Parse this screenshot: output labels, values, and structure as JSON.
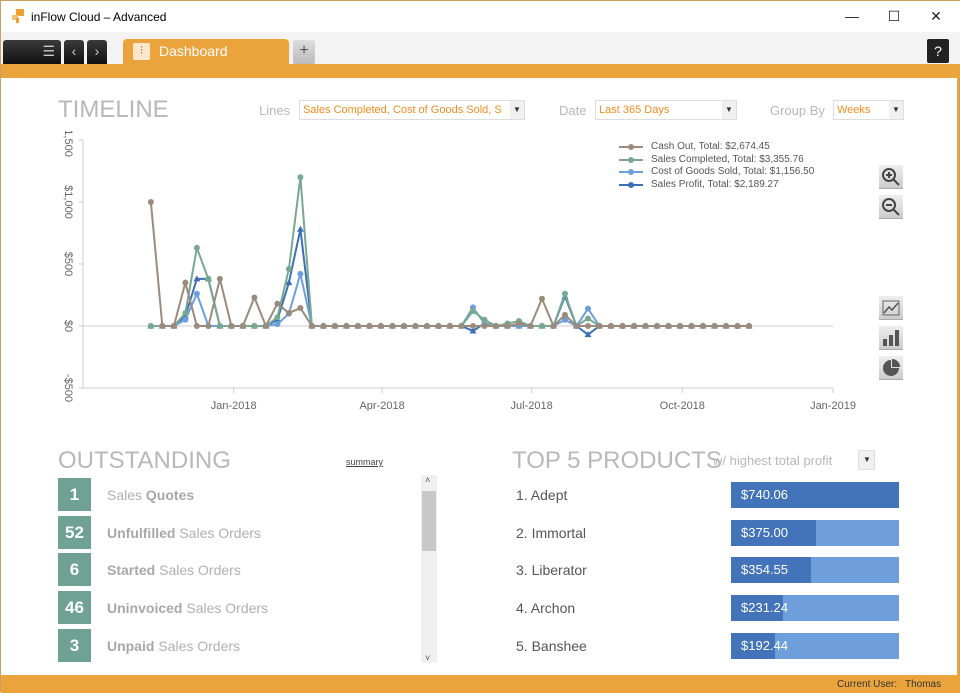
{
  "window": {
    "title": "inFlow Cloud – Advanced",
    "minimize": "—",
    "maximize": "☐",
    "close": "✕"
  },
  "tabbar": {
    "menu": "☰",
    "back": "‹",
    "forward": "›",
    "tab": "Dashboard",
    "add": "+",
    "help": "?"
  },
  "timeline": {
    "title": "TIMELINE",
    "lines_label": "Lines",
    "lines_value": "Sales Completed, Cost of Goods Sold, S",
    "date_label": "Date",
    "date_value": "Last 365 Days",
    "group_label": "Group By",
    "group_value": "Weeks"
  },
  "chart_data": {
    "type": "line",
    "title": "TIMELINE",
    "xlabel": "",
    "ylabel": "",
    "ylim": [
      -500,
      1500
    ],
    "yticks": [
      {
        "v": -500,
        "label": "-$500"
      },
      {
        "v": 0,
        "label": "$0"
      },
      {
        "v": 500,
        "label": "$500"
      },
      {
        "v": 1000,
        "label": "$1,000"
      },
      {
        "v": 1500,
        "label": "$1,500"
      }
    ],
    "x_unit": "week index",
    "xlim": [
      -5.9,
      59.3
    ],
    "xticks": [
      {
        "v": 7.2,
        "label": "Jan-2018"
      },
      {
        "v": 20.1,
        "label": "Apr-2018"
      },
      {
        "v": 33.1,
        "label": "Jul-2018"
      },
      {
        "v": 46.2,
        "label": "Oct-2018"
      },
      {
        "v": 59.3,
        "label": "Jan-2019"
      }
    ],
    "series": [
      {
        "name": "Cash Out, Total: $2,674.45",
        "color": "#9b8b7c",
        "marker": "circle",
        "values": [
          1000,
          0,
          0,
          350,
          0,
          0,
          380,
          0,
          0,
          230,
          0,
          180,
          105,
          145,
          0,
          0,
          0,
          0,
          0,
          0,
          0,
          0,
          0,
          0,
          0,
          0,
          0,
          0,
          0,
          0,
          0,
          0,
          20,
          0,
          220,
          0,
          90,
          0,
          0,
          0,
          0,
          0,
          0,
          0,
          0,
          0,
          0,
          0,
          0,
          0,
          0,
          0,
          0
        ]
      },
      {
        "name": "Sales Completed, Total: $3,355.76",
        "color": "#78a890",
        "marker": "circle",
        "values": [
          0,
          0,
          0,
          105,
          630,
          380,
          0,
          0,
          0,
          0,
          0,
          70,
          460,
          1200,
          0,
          0,
          0,
          0,
          0,
          0,
          0,
          0,
          0,
          0,
          0,
          0,
          0,
          0,
          120,
          50,
          0,
          20,
          40,
          0,
          0,
          0,
          260,
          0,
          60,
          0,
          0,
          0,
          0,
          0,
          0,
          0,
          0,
          0,
          0,
          0,
          0,
          0,
          0
        ]
      },
      {
        "name": "Cost of Goods Sold, Total: $1,156.50",
        "color": "#6f9fda",
        "marker": "circle",
        "values": [
          0,
          0,
          0,
          50,
          260,
          0,
          0,
          0,
          0,
          0,
          0,
          15,
          100,
          420,
          0,
          0,
          0,
          0,
          0,
          0,
          0,
          0,
          0,
          0,
          0,
          0,
          0,
          0,
          150,
          20,
          0,
          0,
          0,
          0,
          0,
          0,
          50,
          0,
          140,
          0,
          0,
          0,
          0,
          0,
          0,
          0,
          0,
          0,
          0,
          0,
          0,
          0,
          0
        ]
      },
      {
        "name": "Sales Profit, Total: $2,189.27",
        "color": "#3c6fb8",
        "marker": "triangle",
        "values": [
          0,
          0,
          0,
          80,
          380,
          380,
          0,
          0,
          0,
          0,
          0,
          50,
          350,
          780,
          0,
          0,
          0,
          0,
          0,
          0,
          0,
          0,
          0,
          0,
          0,
          0,
          0,
          0,
          -40,
          20,
          0,
          0,
          0,
          0,
          0,
          0,
          240,
          0,
          -70,
          0,
          0,
          0,
          0,
          0,
          0,
          0,
          0,
          0,
          0,
          0,
          0,
          0,
          0
        ]
      }
    ],
    "legend": "top-right",
    "grid": false
  },
  "outstanding": {
    "title": "OUTSTANDING",
    "summary": "summary",
    "items": [
      {
        "count": "1",
        "a": "Sales",
        "b": "Quotes",
        "bold": "b"
      },
      {
        "count": "52",
        "a": "Unfulfilled",
        "b": "Sales Orders",
        "bold": "a"
      },
      {
        "count": "6",
        "a": "Started",
        "b": "Sales Orders",
        "bold": "a"
      },
      {
        "count": "46",
        "a": "Uninvoiced",
        "b": "Sales Orders",
        "bold": "a"
      },
      {
        "count": "3",
        "a": "Unpaid",
        "b": "Sales Orders",
        "bold": "a"
      }
    ]
  },
  "top5": {
    "title": "TOP 5 PRODUCTS",
    "subtitle": "w/ highest total profit",
    "items": [
      {
        "name": "1. Adept",
        "value": "$740.06",
        "fraction": 1.0
      },
      {
        "name": "2. Immortal",
        "value": "$375.00",
        "fraction": 0.507
      },
      {
        "name": "3. Liberator",
        "value": "$354.55",
        "fraction": 0.479
      },
      {
        "name": "4. Archon",
        "value": "$231.24",
        "fraction": 0.312
      },
      {
        "name": "5. Banshee",
        "value": "$192.44",
        "fraction": 0.26
      }
    ]
  },
  "status": {
    "user_label": "Current User:",
    "user": "Thomas"
  }
}
